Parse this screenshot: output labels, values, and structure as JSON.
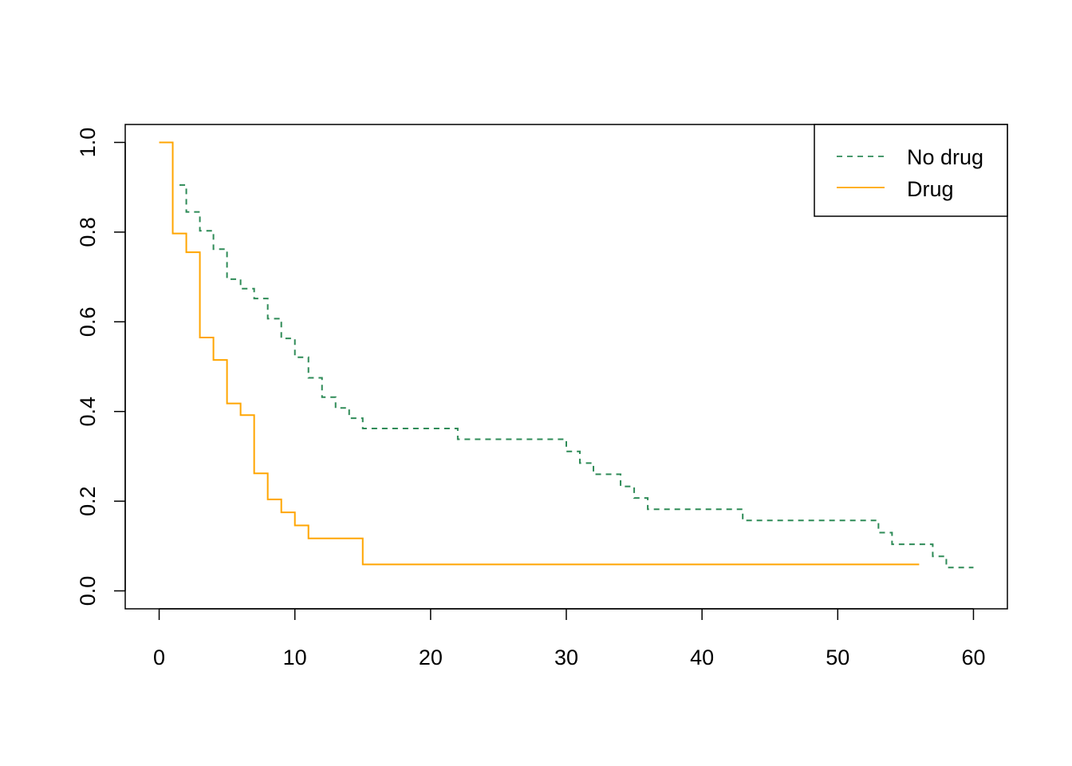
{
  "chart_data": {
    "type": "line",
    "title": "",
    "xlabel": "",
    "ylabel": "",
    "xlim": [
      -2.5,
      62.5
    ],
    "ylim": [
      -0.04,
      1.04
    ],
    "x_ticks": [
      0,
      10,
      20,
      30,
      40,
      50,
      60
    ],
    "y_ticks": [
      0.0,
      0.2,
      0.4,
      0.6,
      0.8,
      1.0
    ],
    "x_tick_labels": [
      "0",
      "10",
      "20",
      "30",
      "40",
      "50",
      "60"
    ],
    "y_tick_labels": [
      "0.0",
      "0.2",
      "0.4",
      "0.6",
      "0.8",
      "1.0"
    ],
    "grid": false,
    "legend_position": "top-right",
    "legend": [
      {
        "name": "No drug",
        "color": "#2e8b57",
        "style": "dashed"
      },
      {
        "name": "Drug",
        "color": "#ffa500",
        "style": "solid"
      }
    ],
    "series": [
      {
        "name": "No drug",
        "color": "#2e8b57",
        "style": "dashed",
        "step": true,
        "x": [
          1.5,
          2,
          3,
          4,
          5,
          6,
          7,
          8,
          9,
          10,
          11,
          12,
          13,
          14,
          15,
          22,
          30,
          31,
          32,
          34,
          35,
          36,
          43,
          53,
          54,
          57,
          58,
          60
        ],
        "y": [
          0.905,
          0.845,
          0.803,
          0.762,
          0.695,
          0.674,
          0.652,
          0.607,
          0.563,
          0.521,
          0.475,
          0.432,
          0.408,
          0.385,
          0.362,
          0.338,
          0.311,
          0.285,
          0.26,
          0.233,
          0.207,
          0.182,
          0.157,
          0.13,
          0.104,
          0.077,
          0.052,
          0.052
        ]
      },
      {
        "name": "Drug",
        "color": "#ffa500",
        "style": "solid",
        "step": true,
        "x": [
          0,
          1,
          2,
          3,
          4,
          5,
          6,
          7,
          8,
          9,
          10,
          11,
          15,
          56
        ],
        "y": [
          1.0,
          0.797,
          0.755,
          0.565,
          0.515,
          0.418,
          0.392,
          0.262,
          0.204,
          0.175,
          0.146,
          0.117,
          0.059,
          0.059
        ]
      }
    ]
  }
}
